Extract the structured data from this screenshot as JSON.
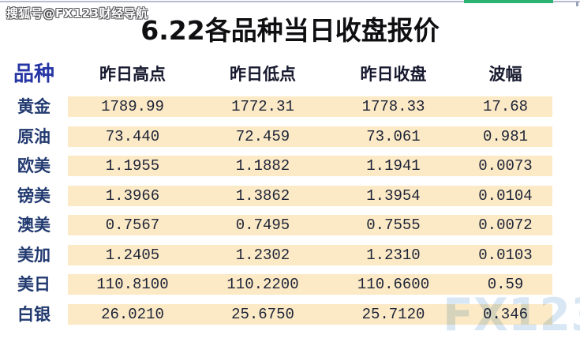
{
  "page": {
    "title": "6.22各品种当日收盘报价"
  },
  "watermarks": {
    "top_left": "搜狐号@FX123财经导航",
    "bottom_right": "FX123"
  },
  "colors": {
    "row_band": "#fce9c5",
    "accent_green": "#2cb372",
    "topline_gray": "#b7bdd0",
    "header_blue": "#2636a5",
    "header_ink": "#16192e",
    "label_navy": "#223a70",
    "number_ink": "#1d2438",
    "title_ink": "#0f0f12",
    "watermark_blue": "#d9e7f5"
  },
  "chart_data": {
    "type": "table",
    "title": "6.22各品种当日收盘报价",
    "columns": [
      "品种",
      "昨日高点",
      "昨日低点",
      "昨日收盘",
      "波幅"
    ],
    "rows": [
      [
        "黄金",
        "1789.99",
        "1772.31",
        "1778.33",
        "17.68"
      ],
      [
        "原油",
        "73.440",
        "72.459",
        "73.061",
        "0.981"
      ],
      [
        "欧美",
        "1.1955",
        "1.1882",
        "1.1941",
        "0.0073"
      ],
      [
        "镑美",
        "1.3966",
        "1.3862",
        "1.3954",
        "0.0104"
      ],
      [
        "澳美",
        "0.7567",
        "0.7495",
        "0.7555",
        "0.0072"
      ],
      [
        "美加",
        "1.2405",
        "1.2302",
        "1.2310",
        "0.0103"
      ],
      [
        "美日",
        "110.8100",
        "110.2200",
        "110.6600",
        "0.59"
      ],
      [
        "白银",
        "26.0210",
        "25.6750",
        "25.7120",
        "0.346"
      ]
    ],
    "layout": {
      "row_band_color": "#fce9c5",
      "grid": "off",
      "header_position": "top"
    }
  }
}
